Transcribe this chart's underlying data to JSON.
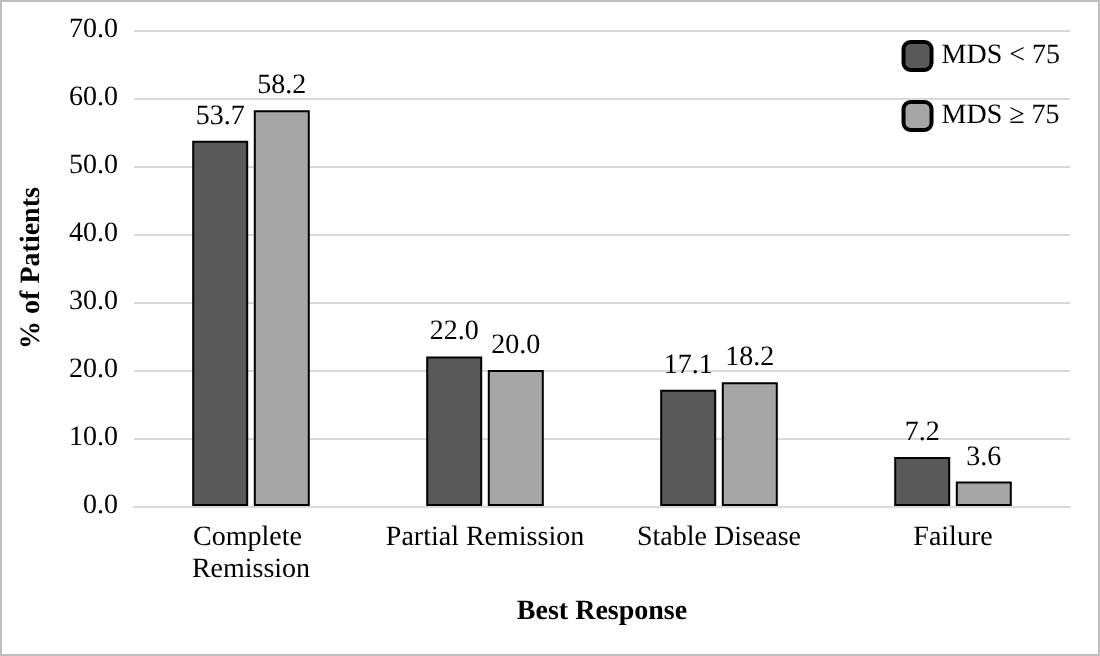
{
  "chart_data": {
    "type": "bar",
    "xlabel": "Best Response",
    "ylabel": "% of Patients",
    "categories": [
      "Complete Remission",
      "Partial Remission",
      "Stable Disease",
      "Failure"
    ],
    "series": [
      {
        "name": "MDS < 75",
        "color": "#595959",
        "values": [
          53.7,
          22.0,
          17.1,
          7.2
        ],
        "value_labels": [
          "53.7",
          "22.0",
          "17.1",
          "7.2"
        ]
      },
      {
        "name": "MDS ≥ 75",
        "color": "#a6a6a6",
        "values": [
          58.2,
          20.0,
          18.2,
          3.6
        ],
        "value_labels": [
          "58.2",
          "20.0",
          "18.2",
          "3.6"
        ]
      }
    ],
    "ylim": [
      0,
      70
    ],
    "yticks": [
      {
        "value": 0,
        "label": "0.0"
      },
      {
        "value": 10,
        "label": "10.0"
      },
      {
        "value": 20,
        "label": "20.0"
      },
      {
        "value": 30,
        "label": "30.0"
      },
      {
        "value": 40,
        "label": "40.0"
      },
      {
        "value": 50,
        "label": "50.0"
      },
      {
        "value": 60,
        "label": "60.0"
      },
      {
        "value": 70,
        "label": "70.0"
      }
    ],
    "grid": "y",
    "legend": "top right"
  }
}
